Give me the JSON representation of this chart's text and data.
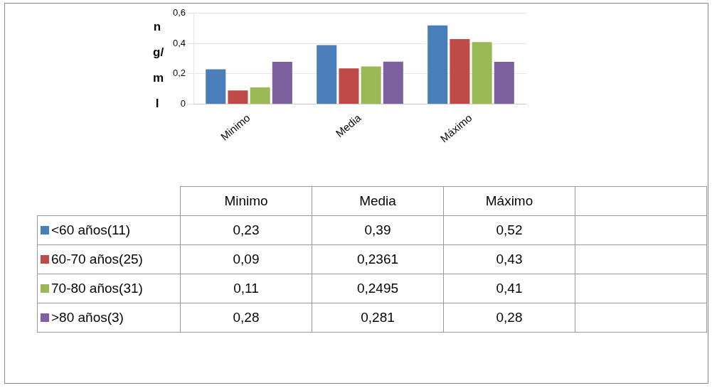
{
  "chart_data": {
    "type": "bar",
    "ylabel": "ng/ml",
    "categories": [
      "Minimo",
      "Media",
      "Máximo"
    ],
    "series": [
      {
        "name": "<60 años(11)",
        "color": "#4a7ebb",
        "values": [
          0.23,
          0.39,
          0.52
        ],
        "value_labels": [
          "0,23",
          "0,39",
          "0,52"
        ]
      },
      {
        "name": "60-70 años(25)",
        "color": "#be4b48",
        "values": [
          0.09,
          0.2361,
          0.43
        ],
        "value_labels": [
          "0,09",
          "0,2361",
          "0,43"
        ]
      },
      {
        "name": "70-80 años(31)",
        "color": "#98b954",
        "values": [
          0.11,
          0.2495,
          0.41
        ],
        "value_labels": [
          "0,11",
          "0,2495",
          "0,41"
        ]
      },
      {
        "name": ">80 años(3)",
        "color": "#7d60a0",
        "values": [
          0.28,
          0.281,
          0.28
        ],
        "value_labels": [
          "0,28",
          "0,281",
          "0,28"
        ]
      }
    ],
    "ylim": [
      0,
      0.6
    ],
    "yticks": [
      0,
      {
        "value": 0.2,
        "label": "0,2"
      },
      {
        "value": 0.4,
        "label": "0,4"
      },
      {
        "value": 0.6,
        "label": "0,6"
      }
    ],
    "grid": "y",
    "legend": "bottom"
  }
}
